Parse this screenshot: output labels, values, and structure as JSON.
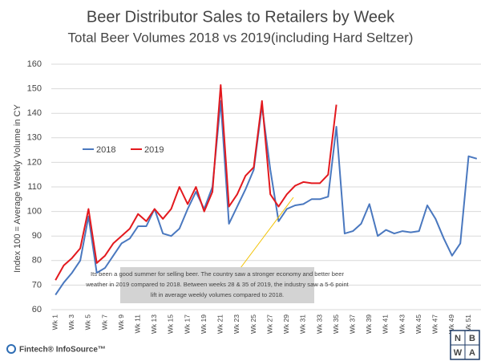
{
  "chart_data": {
    "type": "line",
    "title": "Beer Distributor Sales to Retailers by Week",
    "subtitle": "Total Beer Volumes 2018 vs 2019(including Hard Seltzer)",
    "y_label": "Index 100 = Average Weekly Volume in CY",
    "categories": [
      "Wk 1",
      null,
      "Wk 3",
      null,
      "Wk 5",
      null,
      "Wk 7",
      null,
      "Wk 9",
      null,
      "Wk 11",
      null,
      "Wk 13",
      null,
      "Wk 15",
      null,
      "Wk 17",
      null,
      "Wk 19",
      null,
      "Wk 21",
      null,
      "Wk 23",
      null,
      "Wk 25",
      null,
      "Wk 27",
      null,
      "Wk 29",
      null,
      "Wk 31",
      null,
      "Wk 33",
      null,
      "Wk 35",
      null,
      "Wk 37",
      null,
      "Wk 39",
      null,
      "Wk 41",
      null,
      "Wk 43",
      null,
      "Wk 45",
      null,
      "Wk 47",
      null,
      "Wk 49",
      null,
      "Wk 51",
      null
    ],
    "series": [
      {
        "name": "2018",
        "color": "#4a78bf",
        "values": [
          66,
          71,
          75,
          80,
          98,
          75,
          77,
          82,
          87,
          89,
          94,
          94,
          101,
          91,
          90,
          93,
          101,
          108,
          101,
          110,
          145,
          95,
          102,
          109,
          117,
          143,
          117,
          96,
          101,
          102.5,
          103,
          105,
          105,
          106,
          134.5,
          91,
          92,
          95,
          103,
          90,
          92.5,
          91,
          92,
          91.5,
          92,
          102.5,
          97,
          89,
          82,
          87,
          122.5,
          121.5
        ]
      },
      {
        "name": "2019",
        "color": "#e3191e",
        "values": [
          72,
          78,
          81,
          85,
          101,
          79,
          82,
          87,
          90,
          93,
          99,
          96,
          101,
          97,
          101,
          110,
          103,
          110,
          100,
          108,
          151.5,
          102,
          107,
          114.5,
          118,
          145,
          107,
          102,
          107,
          110.5,
          112,
          111.5,
          111.5,
          115,
          143.5,
          null,
          null,
          null,
          null,
          null,
          null,
          null,
          null,
          null,
          null,
          null,
          null,
          null,
          null,
          null,
          null,
          null
        ]
      }
    ],
    "ylim": [
      60,
      160
    ],
    "yticks": [
      60,
      70,
      80,
      90,
      100,
      110,
      120,
      130,
      140,
      150,
      160
    ],
    "grid": true,
    "annotation": [
      "Its been a good summer for selling beer. The country  saw a stronger economy and better  beer",
      "weather in 2019 compared to 2018. Between weeks 28 & 35 of 2019, the industry saw a 5-6 point",
      "lift in average weekly volumes compared to 2018."
    ]
  },
  "footer": {
    "source": "Fintech® InfoSource™",
    "logo": [
      "N",
      "B",
      "W",
      "A"
    ]
  }
}
